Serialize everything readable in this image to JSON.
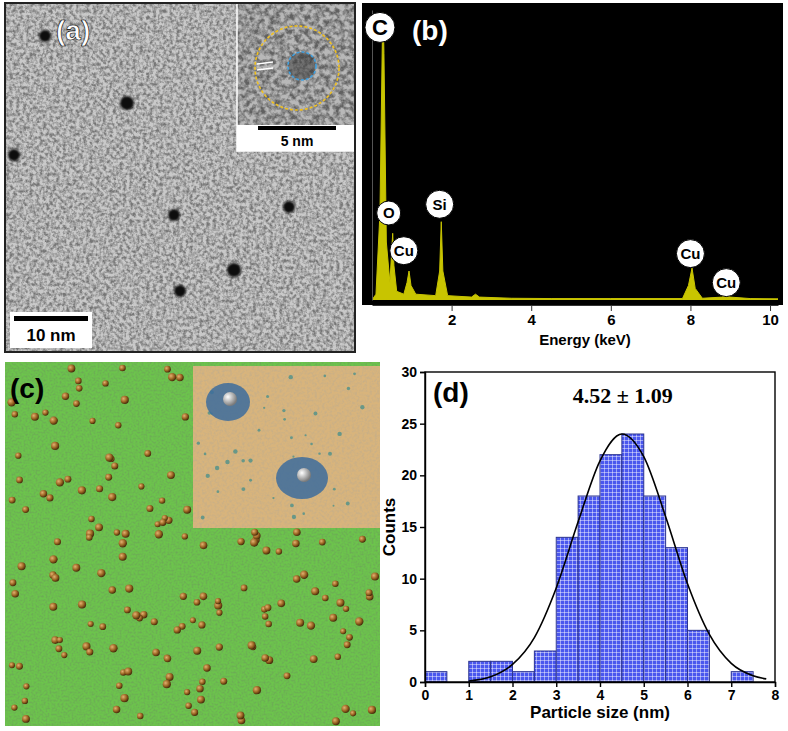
{
  "panels": {
    "a": {
      "label": "(a)",
      "scale_bar": "10 nm",
      "inset_scale_bar": "5 nm"
    },
    "c": {
      "label": "(c)"
    }
  },
  "chart_data": [
    {
      "type": "area",
      "title": "(b)",
      "x_label": "Energy (keV)",
      "x": [
        0,
        0.1,
        0.2,
        0.26,
        0.28,
        0.3,
        0.36,
        0.45,
        0.5,
        0.52,
        0.55,
        0.62,
        0.8,
        0.88,
        0.93,
        0.98,
        1.1,
        1.6,
        1.7,
        1.74,
        1.78,
        1.9,
        2.5,
        2.6,
        2.7,
        3.5,
        4.5,
        6,
        7.8,
        7.95,
        8.04,
        8.12,
        8.3,
        8.8,
        8.9,
        9.0,
        9.5,
        10.2
      ],
      "values": [
        0,
        2,
        30,
        90,
        99,
        85,
        20,
        6,
        18,
        23,
        12,
        3,
        2,
        6,
        10,
        5,
        2,
        1.5,
        10,
        27,
        10,
        1.5,
        1,
        2,
        1,
        0.6,
        0.5,
        0.5,
        0.5,
        5,
        11,
        4,
        0.6,
        1,
        3,
        1,
        0.5,
        0.4
      ],
      "color": "#c8c400",
      "xlim": [
        0,
        10.2
      ],
      "ylim": [
        0,
        100
      ],
      "xticks": [
        2,
        4,
        6,
        8,
        10
      ],
      "tick_labels": "x",
      "annotations": [
        {
          "text": "C",
          "x": 0.2,
          "y": 94
        },
        {
          "text": "O",
          "x": 0.42,
          "y": 30
        },
        {
          "text": "Cu",
          "x": 0.8,
          "y": 17
        },
        {
          "text": "Si",
          "x": 1.7,
          "y": 33
        },
        {
          "text": "Cu",
          "x": 8.0,
          "y": 16
        },
        {
          "text": "Cu",
          "x": 8.9,
          "y": 6
        }
      ]
    },
    {
      "type": "histogram",
      "title": "(d)",
      "x_label": "Particle size (nm)",
      "y_label": "Counts",
      "bins": [
        0,
        0.5,
        1,
        1.5,
        2,
        2.5,
        3,
        3.5,
        4,
        4.5,
        5,
        5.5,
        6,
        6.5,
        7,
        7.5
      ],
      "values": [
        1,
        0,
        2,
        2,
        1,
        3,
        14,
        18,
        22,
        24,
        18,
        13,
        5,
        0,
        1
      ],
      "color": "#4a57ee",
      "xlim": [
        0,
        8
      ],
      "ylim": [
        0,
        30
      ],
      "xticks": [
        0,
        1,
        2,
        3,
        4,
        5,
        6,
        7,
        8
      ],
      "yticks": [
        0,
        5,
        10,
        15,
        20,
        25,
        30
      ],
      "fit": {
        "x": [
          1,
          1.5,
          2,
          2.5,
          3,
          3.5,
          4,
          4.5,
          5,
          5.5,
          6,
          6.5,
          7,
          7.5,
          7.8
        ],
        "values": [
          0.1,
          0.5,
          1.7,
          4.3,
          9.1,
          15.5,
          21.4,
          24,
          21.8,
          16,
          9.5,
          4.6,
          1.8,
          0.6,
          0.3
        ],
        "color": "#000000"
      },
      "annotations": [
        {
          "text": "4.52 ± 1.09",
          "x": 4.52,
          "y": 27
        }
      ]
    }
  ]
}
